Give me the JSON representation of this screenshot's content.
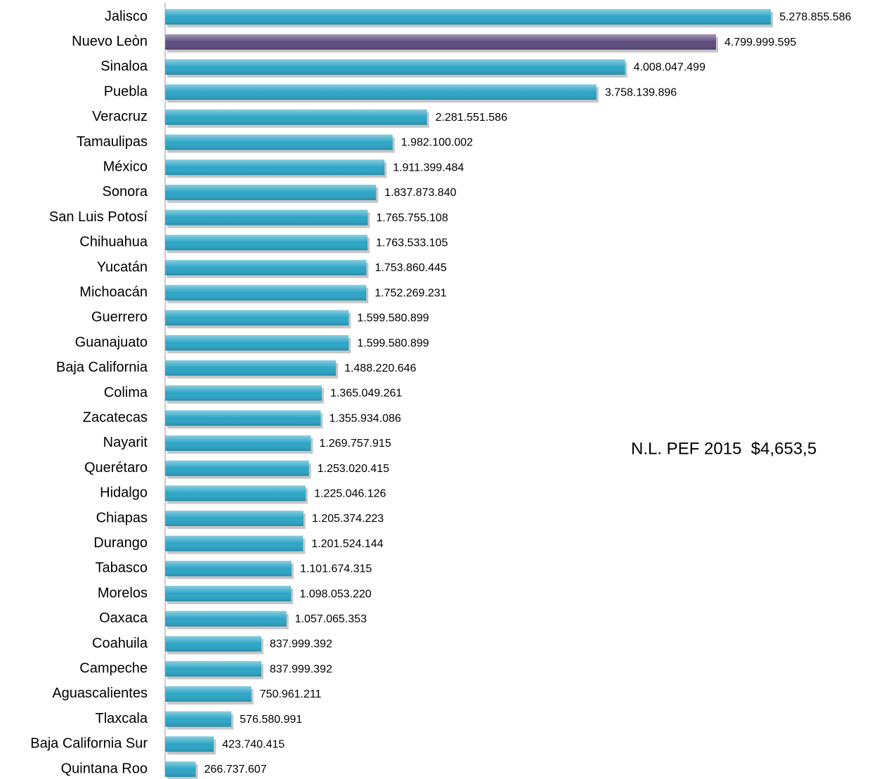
{
  "chart_data": {
    "type": "bar",
    "orientation": "horizontal",
    "categories": [
      "Jalisco",
      "Nuevo Leòn",
      "Sinaloa",
      "Puebla",
      "Veracruz",
      "Tamaulipas",
      "México",
      "Sonora",
      "San Luis Potosí",
      "Chihuahua",
      "Yucatán",
      "Michoacán",
      "Guerrero",
      "Guanajuato",
      "Baja California",
      "Colima",
      "Zacatecas",
      "Nayarit",
      "Querétaro",
      "Hidalgo",
      "Chiapas",
      "Durango",
      "Tabasco",
      "Morelos",
      "Oaxaca",
      "Coahuila",
      "Campeche",
      "Aguascalientes",
      "Tlaxcala",
      "Baja California Sur",
      "Quintana Roo"
    ],
    "values": [
      5278855586,
      4799999595,
      4008047499,
      3758139896,
      2281551586,
      1982100002,
      1911399484,
      1837873840,
      1765755108,
      1763533105,
      1753860445,
      1752269231,
      1599580899,
      1599580899,
      1488220646,
      1365049261,
      1355934086,
      1269757915,
      1253020415,
      1225046126,
      1205374223,
      1201524144,
      1101674315,
      1098053220,
      1057065353,
      837999392,
      837999392,
      750961211,
      576580991,
      423740415,
      266737607
    ],
    "value_labels": [
      "5.278.855.586",
      "4.799.999.595",
      "4.008.047.499",
      "3.758.139.896",
      "2.281.551.586",
      "1.982.100.002",
      "1.911.399.484",
      "1.837.873.840",
      "1.765.755.108",
      "1.763.533.105",
      "1.753.860.445",
      "1.752.269.231",
      "1.599.580.899",
      "1.599.580.899",
      "1.488.220.646",
      "1.365.049.261",
      "1.355.934.086",
      "1.269.757.915",
      "1.253.020.415",
      "1.225.046.126",
      "1.205.374.223",
      "1.201.524.144",
      "1.101.674.315",
      "1.098.053.220",
      "1.057.065.353",
      "837.999.392",
      "837.999.392",
      "750.961.211",
      "576.580.991",
      "423.740.415",
      "266.737.607"
    ],
    "colors": [
      "#2ca5c6",
      "#5d4a7d",
      "#2ca5c6",
      "#2ca5c6",
      "#2ca5c6",
      "#2ca5c6",
      "#2ca5c6",
      "#2ca5c6",
      "#2ca5c6",
      "#2ca5c6",
      "#2ca5c6",
      "#2ca5c6",
      "#2ca5c6",
      "#2ca5c6",
      "#2ca5c6",
      "#2ca5c6",
      "#2ca5c6",
      "#2ca5c6",
      "#2ca5c6",
      "#2ca5c6",
      "#2ca5c6",
      "#2ca5c6",
      "#2ca5c6",
      "#2ca5c6",
      "#2ca5c6",
      "#2ca5c6",
      "#2ca5c6",
      "#2ca5c6",
      "#2ca5c6",
      "#2ca5c6",
      "#2ca5c6"
    ],
    "xlim": [
      0,
      6000000000
    ],
    "annotation": "N.L. PEF 2015  $4,653,5"
  }
}
